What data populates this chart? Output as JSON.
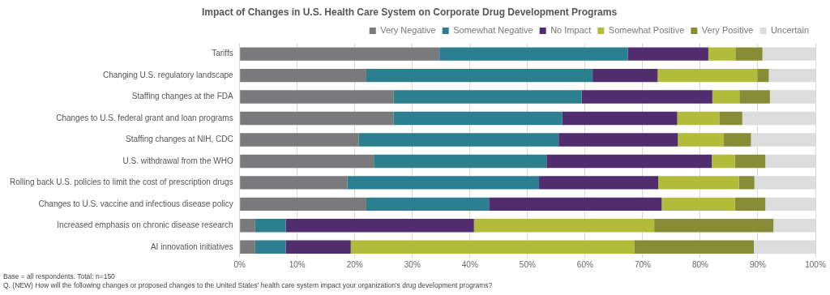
{
  "chart_data": {
    "type": "bar",
    "orientation": "horizontal",
    "stacked": true,
    "title": "Impact of Changes in U.S. Health Care System on Corporate Drug Development Programs",
    "categories": [
      "Tariffs",
      "Changing U.S. regulatory landscape",
      "Staffing changes at the FDA",
      "Changes to U.S. federal grant and loan programs",
      "Staffing changes at NIH, CDC",
      "U.S. withdrawal from the WHO",
      "Rolling back U.S. policies to limit the cost of prescription drugs",
      "Changes to U.S. vaccine and infectious disease policy",
      "Increased emphasis on chronic disease research",
      "AI innovation initiatives"
    ],
    "series": [
      {
        "name": "Very Negative",
        "color": "#7a7a7c",
        "values": [
          34.7,
          22,
          26.7,
          26.7,
          20.7,
          23.3,
          18.7,
          22,
          2.7,
          2.7
        ]
      },
      {
        "name": "Somewhat Negative",
        "color": "#2b7f8e",
        "values": [
          32.7,
          39.3,
          32.7,
          29.3,
          34.7,
          30,
          33.3,
          21.3,
          5.3,
          5.3
        ]
      },
      {
        "name": "No Impact",
        "color": "#512c6e",
        "values": [
          14,
          11.3,
          22.7,
          20,
          20.7,
          28.7,
          20.7,
          30,
          32.7,
          11.3
        ]
      },
      {
        "name": "Somewhat Positive",
        "color": "#b3bb3a",
        "values": [
          4.7,
          17.3,
          4.7,
          7.3,
          8,
          4,
          14,
          12.7,
          31.3,
          49.3
        ]
      },
      {
        "name": "Very Positive",
        "color": "#878c37",
        "values": [
          4.7,
          2,
          5.3,
          4,
          4.7,
          5.3,
          2.7,
          5.3,
          20.7,
          20.7
        ]
      },
      {
        "name": "Uncertain",
        "color": "#dcdcdc",
        "values": [
          9.2,
          8.1,
          7.9,
          12.7,
          11.2,
          8.7,
          10.6,
          8.7,
          7.3,
          10.7
        ]
      }
    ],
    "xlim": [
      0,
      100
    ],
    "xticks": [
      {
        "value": 0,
        "label": "0%"
      },
      {
        "value": 10,
        "label": "10%"
      },
      {
        "value": 20,
        "label": "20%"
      },
      {
        "value": 30,
        "label": "30%"
      },
      {
        "value": 40,
        "label": "40%"
      },
      {
        "value": 50,
        "label": "50%"
      },
      {
        "value": 60,
        "label": "60%"
      },
      {
        "value": 70,
        "label": "70%"
      },
      {
        "value": 80,
        "label": "80%"
      },
      {
        "value": 90,
        "label": "90%"
      },
      {
        "value": 100,
        "label": "100%"
      }
    ],
    "grid": "x",
    "legend": "top right",
    "annotations": [
      "Base = all respondents. Total: n=150",
      "Q. (NEW) How will the following changes or proposed changes to the United States' health care system impact your organization's drug development programs?"
    ]
  }
}
